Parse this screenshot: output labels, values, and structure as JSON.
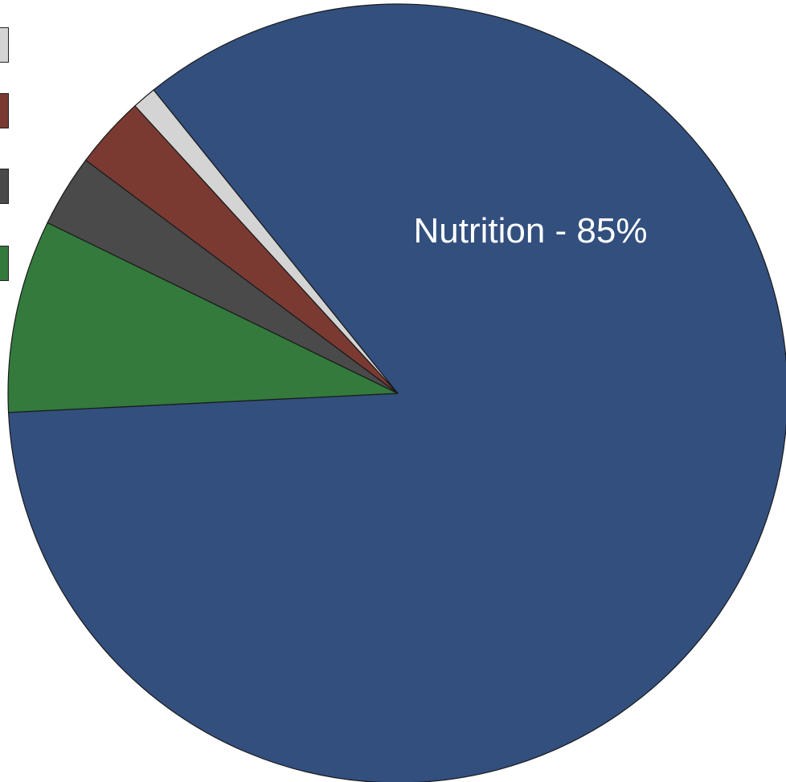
{
  "chart_data": {
    "type": "pie",
    "slices": [
      {
        "value": 85,
        "color": "#324f7e",
        "label": "Nutrition - 85%"
      },
      {
        "value": 8,
        "color": "#337a3c",
        "label": ""
      },
      {
        "value": 3,
        "color": "#4a4a4a",
        "label": ""
      },
      {
        "value": 3,
        "color": "#7a3a32",
        "label": ""
      },
      {
        "value": 1,
        "color": "#d4d4d4",
        "label": ""
      }
    ],
    "legend": {
      "position": "top-left",
      "colors": [
        "#d4d4d4",
        "#7a3a32",
        "#4a4a4a",
        "#337a3c"
      ]
    }
  }
}
